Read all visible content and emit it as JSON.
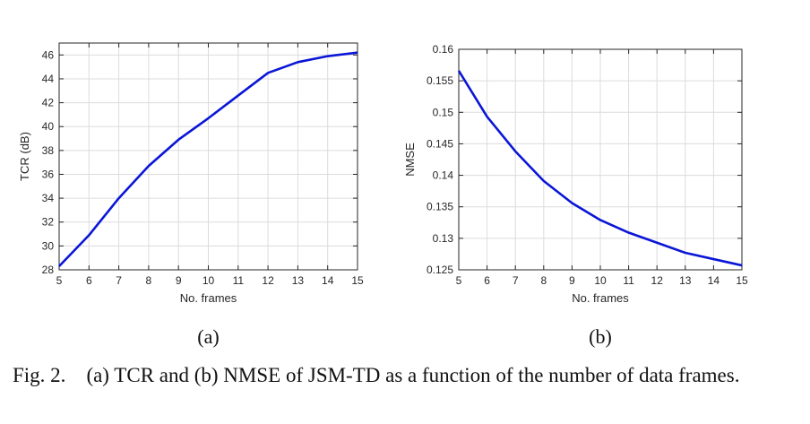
{
  "chart_data": [
    {
      "type": "line",
      "xlabel": "No. frames",
      "ylabel": "TCR (dB)",
      "sublabel": "(a)",
      "x": [
        5,
        6,
        7,
        8,
        9,
        10,
        11,
        12,
        13,
        14,
        15
      ],
      "xticks": [
        "5",
        "6",
        "7",
        "8",
        "9",
        "10",
        "11",
        "12",
        "13",
        "14",
        "15"
      ],
      "xlim": [
        5,
        15
      ],
      "ylim": [
        28,
        47
      ],
      "yticks": [
        28,
        30,
        32,
        34,
        36,
        38,
        40,
        42,
        44,
        46
      ],
      "ytick_labels": [
        "28",
        "30",
        "32",
        "34",
        "36",
        "38",
        "40",
        "42",
        "44",
        "46"
      ],
      "grid": true,
      "series": [
        {
          "values": [
            28.3,
            30.9,
            34.0,
            36.7,
            38.9,
            40.7,
            42.6,
            44.5,
            45.4,
            45.9,
            46.2
          ],
          "color": "#0a16d6"
        }
      ]
    },
    {
      "type": "line",
      "xlabel": "No. frames",
      "ylabel": "NMSE",
      "sublabel": "(b)",
      "x": [
        5,
        6,
        7,
        8,
        9,
        10,
        11,
        12,
        13,
        14,
        15
      ],
      "xticks": [
        "5",
        "6",
        "7",
        "8",
        "9",
        "10",
        "11",
        "12",
        "13",
        "14",
        "15"
      ],
      "xlim": [
        5,
        15
      ],
      "ylim": [
        0.125,
        0.16
      ],
      "yticks": [
        0.125,
        0.13,
        0.135,
        0.14,
        0.145,
        0.15,
        0.155,
        0.16
      ],
      "ytick_labels": [
        "0.125",
        "0.13",
        "0.135",
        "0.14",
        "0.145",
        "0.15",
        "0.155",
        "0.16"
      ],
      "grid": true,
      "series": [
        {
          "values": [
            0.1566,
            0.1493,
            0.1438,
            0.1391,
            0.1356,
            0.1329,
            0.1309,
            0.1293,
            0.1277,
            0.1267,
            0.1257
          ],
          "color": "#0a16d6"
        }
      ]
    }
  ],
  "caption": {
    "label": "Fig. 2.",
    "text": "(a) TCR and (b) NMSE of JSM-TD as a function of the number of data frames."
  }
}
